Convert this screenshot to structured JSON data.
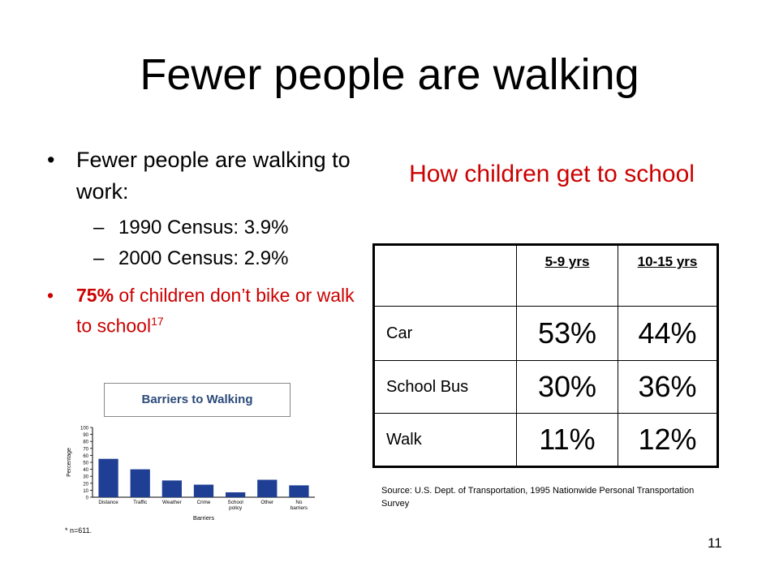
{
  "slide": {
    "title": "Fewer people are walking",
    "bullets": [
      {
        "text": "Fewer people are walking to work:"
      },
      {
        "sub": [
          "1990 Census: 3.9%",
          "2000 Census: 2.9%"
        ]
      }
    ],
    "red_bullet": {
      "bold": "75%",
      "text": " of children don’t bike or walk to school",
      "superscript": "17"
    },
    "table_title": "How children get to school",
    "table": {
      "headers": [
        "5-9 yrs",
        "10-15 yrs"
      ],
      "rows": [
        {
          "mode": "Car",
          "values": [
            "53%",
            "44%"
          ]
        },
        {
          "mode": "School Bus",
          "values": [
            "30%",
            "36%"
          ]
        },
        {
          "mode": "Walk",
          "values": [
            "11%",
            "12%"
          ]
        }
      ]
    },
    "source": "Source: U.S. Dept. of Transportation, 1995 Nationwide Personal Transportation Survey",
    "slide_number": "11",
    "chart_box_label": "Barriers to Walking",
    "footnote": "* n=611."
  },
  "chart_data": {
    "type": "bar",
    "categories": [
      "Distance",
      "Traffic",
      "Weather",
      "Crime",
      "School policy",
      "Other",
      "No barriers"
    ],
    "values": [
      55,
      40,
      24,
      18,
      7,
      25,
      17
    ],
    "xlabel": "Barriers",
    "ylabel": "Percentage",
    "ylim": [
      0,
      100
    ],
    "yticks": [
      0,
      10,
      20,
      30,
      40,
      50,
      60,
      70,
      80,
      90,
      100
    ],
    "bar_color": "#1f3f94",
    "grid": false
  }
}
